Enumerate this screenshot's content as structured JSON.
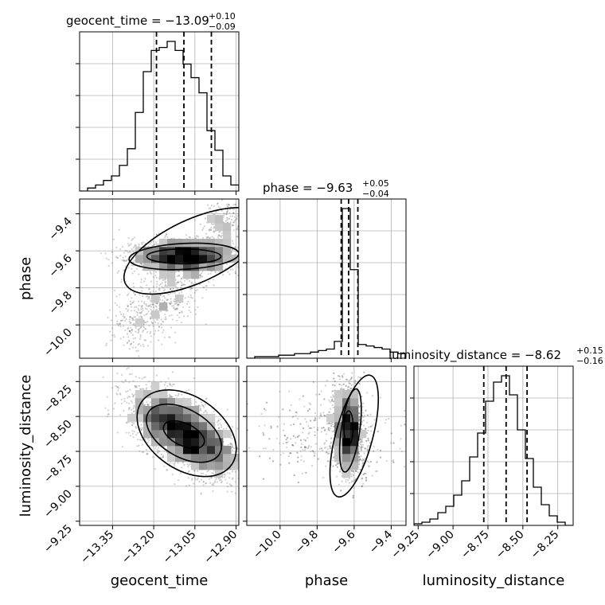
{
  "chart_data": {
    "type": "corner",
    "parameters": [
      "geocent_time",
      "phase",
      "luminosity_distance"
    ],
    "titles": [
      {
        "param": "geocent_time",
        "prefix": "geocent_time = ",
        "median": "−13.09",
        "upper": "+0.10",
        "lower": "−0.09"
      },
      {
        "param": "phase",
        "prefix": "phase = ",
        "median": "−9.63",
        "upper": "+0.05",
        "lower": "−0.04"
      },
      {
        "param": "luminosity_distance",
        "prefix": "luminosity_distance = ",
        "median": "−8.62",
        "upper": "+0.15",
        "lower": "−0.16"
      }
    ],
    "axis_labels": {
      "x": [
        "geocent_time",
        "phase",
        "luminosity_distance"
      ],
      "y": [
        "phase",
        "luminosity_distance"
      ]
    },
    "ranges": {
      "geocent_time": [
        -13.47,
        -12.89
      ],
      "phase": [
        -10.18,
        -9.32
      ],
      "luminosity_distance": [
        -9.28,
        -8.14
      ]
    },
    "ticks": {
      "geocent_time": {
        "values": [
          -13.35,
          -13.2,
          -13.05,
          -12.9
        ],
        "labels": [
          "−13.35",
          "−13.20",
          "−13.05",
          "−12.90"
        ]
      },
      "phase": {
        "values": [
          -10.0,
          -9.8,
          -9.6,
          -9.4
        ],
        "labels": [
          "−10.0",
          "−9.8",
          "−9.6",
          "−9.4"
        ]
      },
      "luminosity_distance": {
        "values": [
          -9.25,
          -9.0,
          -8.75,
          -8.5,
          -8.25
        ],
        "labels": [
          "−9.25",
          "−9.00",
          "−8.75",
          "−8.50",
          "−8.25"
        ]
      }
    },
    "quantiles": {
      "geocent_time": [
        -13.19,
        -13.09,
        -12.99
      ],
      "phase": [
        -9.67,
        -9.63,
        -9.58
      ],
      "luminosity_distance": [
        -8.78,
        -8.62,
        -8.47
      ]
    },
    "histograms": {
      "geocent_time": {
        "edges": [
          -13.47,
          -13.441,
          -13.412,
          -13.383,
          -13.354,
          -13.325,
          -13.296,
          -13.267,
          -13.238,
          -13.209,
          -13.18,
          -13.151,
          -13.122,
          -13.093,
          -13.064,
          -13.035,
          -13.006,
          -12.977,
          -12.948,
          -12.919,
          -12.89
        ],
        "counts": [
          0.0,
          0.02,
          0.04,
          0.07,
          0.1,
          0.17,
          0.28,
          0.52,
          0.79,
          0.93,
          0.95,
          0.99,
          0.93,
          0.84,
          0.75,
          0.65,
          0.4,
          0.27,
          0.1,
          0.04
        ]
      },
      "phase": {
        "edges": [
          -10.18,
          -10.137,
          -10.094,
          -10.051,
          -10.008,
          -9.965,
          -9.922,
          -9.879,
          -9.836,
          -9.793,
          -9.75,
          -9.707,
          -9.664,
          -9.621,
          -9.578,
          -9.535,
          -9.492,
          -9.449,
          -9.406,
          -9.363,
          -9.32
        ],
        "counts": [
          0.0,
          0.01,
          0.01,
          0.01,
          0.02,
          0.02,
          0.03,
          0.03,
          0.04,
          0.05,
          0.06,
          0.11,
          0.98,
          0.58,
          0.09,
          0.08,
          0.07,
          0.06,
          0.04,
          0.03
        ]
      },
      "luminosity_distance": {
        "edges": [
          -9.28,
          -9.223,
          -9.166,
          -9.109,
          -9.052,
          -8.995,
          -8.938,
          -8.881,
          -8.824,
          -8.767,
          -8.71,
          -8.653,
          -8.596,
          -8.539,
          -8.482,
          -8.425,
          -8.368,
          -8.311,
          -8.254,
          -8.197,
          -8.14
        ],
        "counts": [
          0.01,
          0.02,
          0.04,
          0.08,
          0.12,
          0.19,
          0.28,
          0.43,
          0.58,
          0.78,
          0.9,
          0.94,
          0.82,
          0.6,
          0.42,
          0.24,
          0.13,
          0.06,
          0.02,
          0.0
        ]
      }
    },
    "joint": [
      {
        "x": "geocent_time",
        "y": "phase",
        "description": "narrow band at phase -9.63 spanning geocent_time, with a tail toward low geocent_time and low phase"
      },
      {
        "x": "geocent_time",
        "y": "luminosity_distance",
        "description": "negatively correlated ellipse centered near (-13.09, -8.62)"
      },
      {
        "x": "phase",
        "y": "luminosity_distance",
        "description": "vertical elongated ellipse centered near phase -9.63"
      }
    ],
    "grid": true,
    "legend": "none"
  }
}
